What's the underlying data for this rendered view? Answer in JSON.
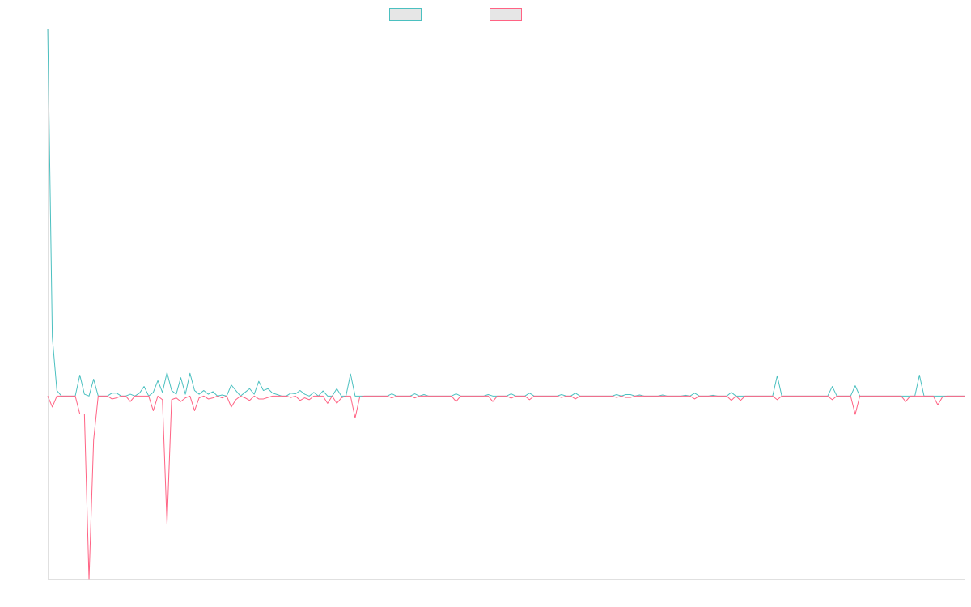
{
  "chart_data": {
    "type": "line",
    "categories": [
      null,
      null,
      null,
      null,
      null,
      null,
      null,
      null,
      null,
      null,
      null,
      null,
      null,
      null,
      null,
      null,
      null,
      null,
      null,
      null,
      null,
      null,
      null,
      null,
      null,
      null,
      null,
      null,
      null,
      null,
      null,
      null,
      null,
      null,
      null,
      null,
      null,
      null,
      null,
      null,
      null,
      null,
      null,
      null,
      null,
      null,
      null,
      null,
      null,
      null,
      null,
      null,
      null,
      null,
      null,
      null,
      null,
      null,
      null,
      null,
      null,
      null,
      null,
      null,
      null,
      null,
      null,
      null,
      null,
      null,
      null,
      null,
      null,
      null,
      null,
      null,
      null,
      null,
      null,
      null,
      null,
      null,
      null,
      null,
      null,
      null,
      null,
      null,
      null,
      null,
      null,
      null,
      null,
      null,
      null,
      null,
      null,
      null,
      null,
      null,
      null,
      null,
      null,
      null,
      null,
      null,
      null,
      null,
      null,
      null,
      null,
      null,
      null,
      null,
      null,
      null,
      null,
      null,
      null,
      null,
      null,
      null,
      null,
      null,
      null,
      null,
      null,
      null,
      null,
      null,
      null,
      null,
      null,
      null,
      null,
      null,
      null,
      null,
      null,
      null,
      null,
      null,
      null,
      null,
      null,
      null,
      null,
      null,
      null,
      null,
      null,
      null,
      null,
      null,
      null,
      null,
      null,
      null,
      null,
      null,
      null,
      null,
      null,
      null,
      null,
      null,
      null,
      null,
      null,
      null,
      null,
      null,
      null,
      null,
      null,
      null,
      null,
      null,
      null,
      null,
      null,
      null,
      null,
      null,
      null,
      null,
      null,
      null,
      null,
      null,
      null,
      null,
      null,
      null,
      null,
      null,
      null,
      null,
      null,
      null,
      null
    ],
    "series": [
      {
        "color": "#4bc0c0",
        "values": [
          100,
          16,
          1.5,
          0,
          0,
          0,
          0,
          5.7,
          0.5,
          0,
          4.6,
          0,
          0,
          0,
          0.8,
          0.8,
          0,
          0,
          0.5,
          0,
          0.8,
          2.6,
          0,
          1,
          4.2,
          1,
          6.4,
          1.5,
          0.5,
          5,
          0.5,
          6.2,
          1.5,
          0.5,
          1.5,
          0.5,
          1.2,
          0,
          0.3,
          0,
          3,
          1.5,
          0,
          1,
          2,
          0.5,
          4,
          1.5,
          2,
          0.8,
          0.4,
          0,
          0,
          0.8,
          0.6,
          1.5,
          0.5,
          0,
          1,
          0,
          1.4,
          0,
          0,
          2,
          0,
          0,
          6,
          0,
          0,
          0,
          0,
          0,
          0,
          0,
          0,
          0.6,
          0,
          0,
          0,
          0,
          0.6,
          0,
          0.4,
          0,
          0,
          0,
          0,
          0,
          0,
          0.6,
          0,
          0,
          0,
          0,
          0,
          0,
          0.4,
          0,
          0,
          0,
          0,
          0.6,
          0,
          0,
          0,
          0.8,
          0,
          0,
          0,
          0,
          0,
          0,
          0.4,
          0,
          0,
          0.8,
          0,
          0,
          0,
          0,
          0,
          0,
          0,
          0,
          0.4,
          0,
          0.4,
          0.4,
          0,
          0.3,
          0,
          0,
          0,
          0,
          0.3,
          0,
          0,
          0,
          0,
          0.2,
          0,
          0.8,
          0,
          0,
          0,
          0.2,
          0,
          0,
          0,
          1,
          0,
          0,
          0,
          0,
          0,
          0,
          0,
          0,
          0,
          5.5,
          0,
          0,
          0,
          0,
          0,
          0,
          0,
          0,
          0,
          0,
          0,
          2.6,
          0,
          0,
          0,
          0,
          2.8,
          0,
          0,
          0,
          0,
          0,
          0,
          0,
          0,
          0,
          0,
          0,
          0,
          0,
          5.7,
          0,
          0,
          0,
          0,
          0,
          0,
          0,
          0,
          0,
          0
        ]
      },
      {
        "color": "#ff6384",
        "values": [
          0,
          -3,
          0,
          0,
          0,
          0,
          0,
          -4.9,
          -4.9,
          -50,
          -12,
          0,
          0,
          0,
          -0.8,
          -0.5,
          0,
          0,
          -1.5,
          0,
          0,
          0,
          0,
          -4,
          0,
          -1,
          -35,
          -1,
          -0.5,
          -1.5,
          -0.5,
          0,
          -4,
          -0.5,
          0,
          -0.8,
          -0.5,
          0,
          -0.5,
          0,
          -3,
          -1,
          0,
          -0.5,
          -1.2,
          0,
          -0.8,
          -0.8,
          -0.4,
          0,
          0,
          0,
          0,
          -0.4,
          0,
          -1.2,
          -0.5,
          -1,
          0,
          0,
          0,
          -2,
          0,
          -2,
          -0.5,
          0,
          0,
          -6,
          -0.3,
          0,
          0,
          0,
          0,
          0,
          0,
          -0.5,
          0,
          0,
          0,
          0,
          -0.5,
          0,
          0,
          0,
          0,
          0,
          0,
          0,
          0,
          -1.5,
          0,
          0,
          0,
          0,
          0,
          0,
          0,
          -1.5,
          0,
          0,
          0,
          -0.6,
          0,
          0,
          0,
          -1,
          0,
          0,
          0,
          0,
          0,
          0,
          -0.4,
          0,
          0,
          -0.8,
          0,
          0,
          0,
          0,
          0,
          0,
          0,
          0,
          -0.4,
          0,
          -0.4,
          -0.4,
          0,
          0,
          0,
          0,
          0,
          0,
          0,
          0,
          0,
          0,
          0,
          0,
          0,
          -0.8,
          0,
          0,
          0,
          0,
          0,
          0,
          0,
          -1.2,
          0,
          -1.2,
          0,
          0,
          0,
          0,
          0,
          0,
          0,
          -1,
          0,
          0,
          0,
          0,
          0,
          0,
          0,
          0,
          0,
          0,
          0,
          -1,
          0,
          0,
          0,
          0,
          -5,
          0,
          0,
          0,
          0,
          0,
          0,
          0,
          0,
          0,
          0,
          -1.5,
          0,
          0,
          0,
          0,
          0,
          0,
          -2.4,
          -0.3,
          0,
          0,
          0,
          0,
          0
        ]
      }
    ],
    "ylim": [
      -50,
      100
    ],
    "grid": false
  }
}
